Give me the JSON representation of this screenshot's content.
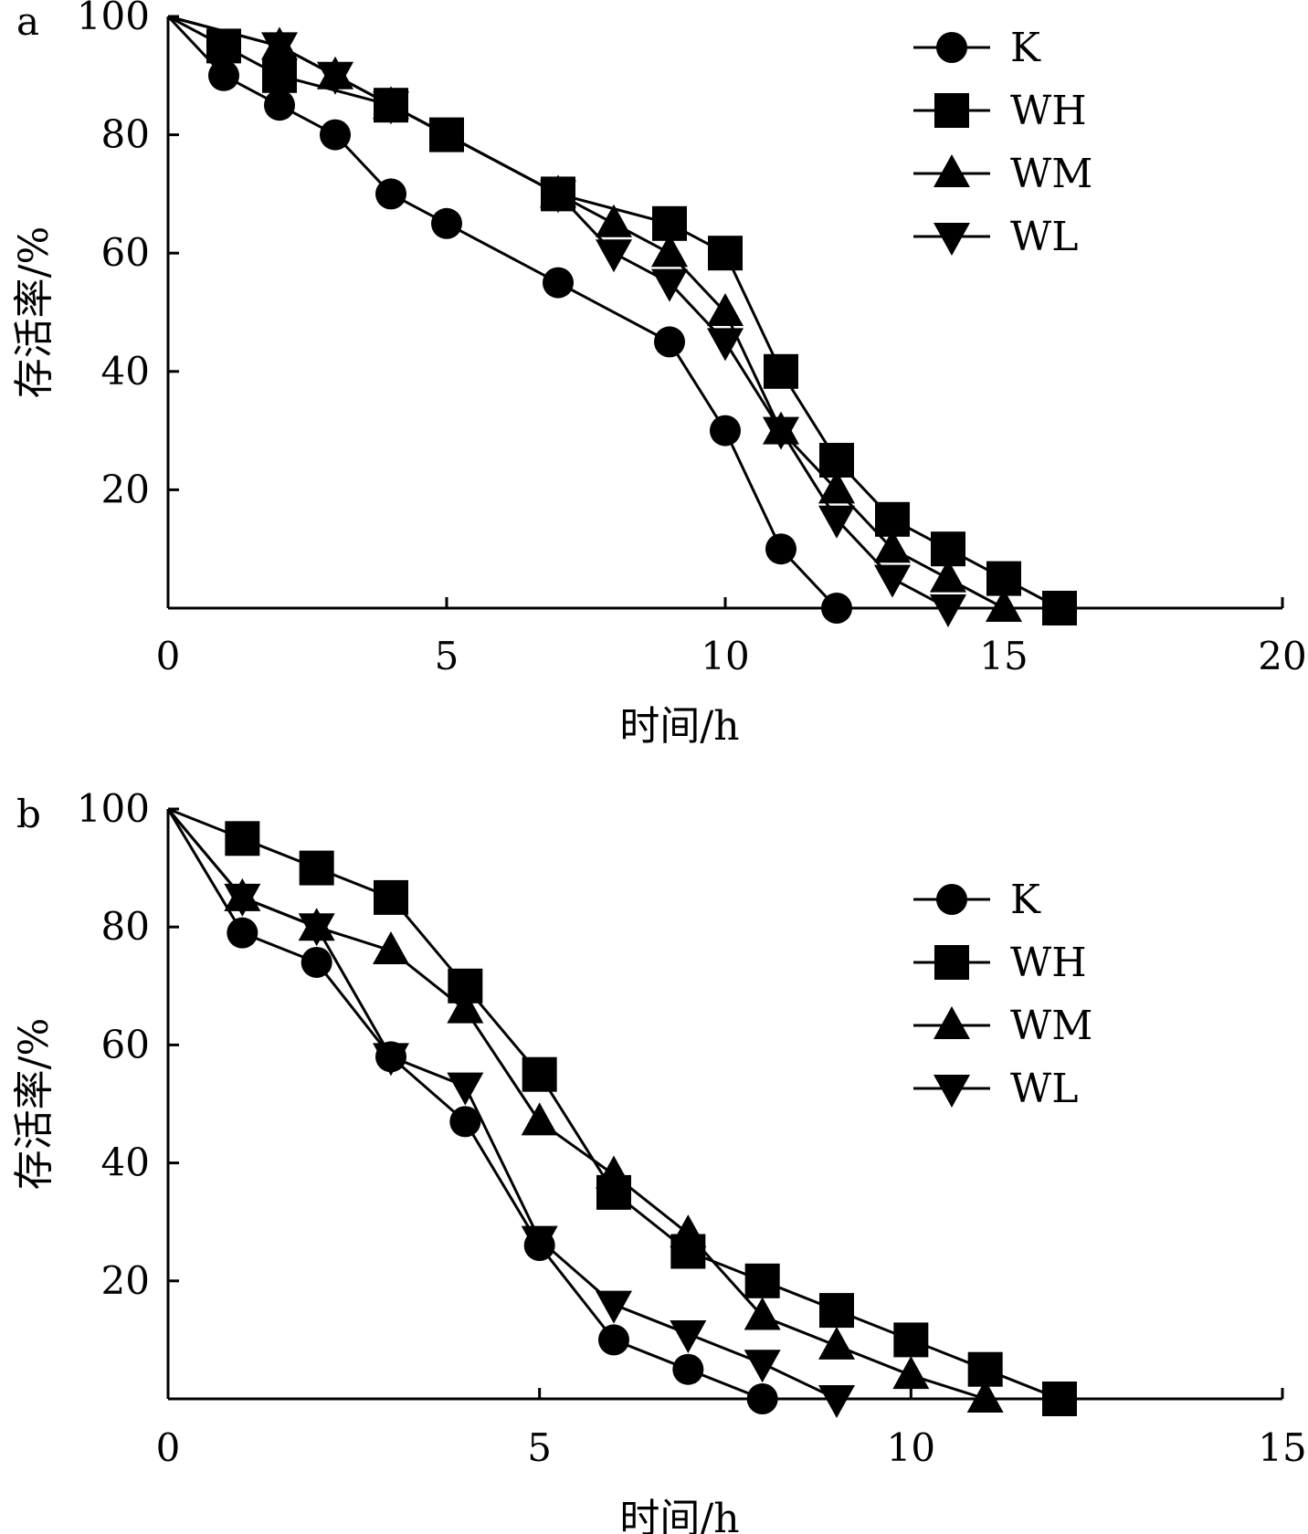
{
  "chart_data": [
    {
      "type": "line",
      "panel_label": "a",
      "xlabel": "时间/h",
      "ylabel": "存活率/%",
      "xlim": [
        0,
        20
      ],
      "ylim": [
        0,
        100
      ],
      "xticks": [
        "0",
        "5",
        "10",
        "15",
        "20"
      ],
      "yticks": [
        "20",
        "40",
        "60",
        "80",
        "100"
      ],
      "legend_position": "top-right",
      "series": [
        {
          "name": "K",
          "marker": "circle",
          "x": [
            0,
            1,
            2,
            3,
            4,
            5,
            7,
            9,
            10,
            11,
            12
          ],
          "y": [
            100,
            90,
            85,
            80,
            70,
            65,
            55,
            45,
            30,
            10,
            0
          ]
        },
        {
          "name": "WH",
          "marker": "square",
          "x": [
            0,
            1,
            2,
            4,
            5,
            7,
            9,
            10,
            11,
            12,
            13,
            14,
            15,
            16
          ],
          "y": [
            100,
            95,
            90,
            85,
            80,
            70,
            65,
            60,
            40,
            25,
            15,
            10,
            5,
            0
          ]
        },
        {
          "name": "WM",
          "marker": "triangle-up",
          "x": [
            0,
            2,
            3,
            4,
            7,
            8,
            9,
            10,
            11,
            12,
            13,
            14,
            15
          ],
          "y": [
            100,
            95,
            90,
            85,
            70,
            65,
            60,
            50,
            30,
            20,
            10,
            5,
            0
          ]
        },
        {
          "name": "WL",
          "marker": "triangle-down",
          "x": [
            0,
            2,
            3,
            4,
            7,
            8,
            9,
            10,
            11,
            12,
            13,
            14
          ],
          "y": [
            100,
            95,
            90,
            85,
            70,
            60,
            55,
            45,
            30,
            15,
            5,
            0
          ]
        }
      ]
    },
    {
      "type": "line",
      "panel_label": "b",
      "xlabel": "时间/h",
      "ylabel": "存活率/%",
      "xlim": [
        0,
        15
      ],
      "ylim": [
        0,
        100
      ],
      "xticks": [
        "0",
        "5",
        "10",
        "15"
      ],
      "yticks": [
        "20",
        "40",
        "60",
        "80",
        "100"
      ],
      "legend_position": "top-right",
      "series": [
        {
          "name": "K",
          "marker": "circle",
          "x": [
            0,
            1,
            2,
            3,
            4,
            5,
            6,
            7,
            8
          ],
          "y": [
            100,
            79,
            74,
            58,
            47,
            26,
            10,
            5,
            0
          ]
        },
        {
          "name": "WH",
          "marker": "square",
          "x": [
            0,
            1,
            2,
            3,
            4,
            5,
            6,
            7,
            8,
            9,
            10,
            11,
            12
          ],
          "y": [
            100,
            95,
            90,
            85,
            70,
            55,
            35,
            25,
            20,
            15,
            10,
            5,
            0
          ]
        },
        {
          "name": "WM",
          "marker": "triangle-up",
          "x": [
            0,
            1,
            2,
            3,
            4,
            5,
            6,
            7,
            8,
            9,
            10,
            11
          ],
          "y": [
            100,
            85,
            80,
            76,
            66,
            47,
            38,
            28,
            14,
            9,
            4,
            0
          ]
        },
        {
          "name": "WL",
          "marker": "triangle-down",
          "x": [
            0,
            1,
            2,
            3,
            4,
            5,
            6,
            7,
            8,
            9
          ],
          "y": [
            100,
            85,
            80,
            58,
            53,
            27,
            16,
            11,
            6,
            0
          ]
        }
      ]
    }
  ]
}
